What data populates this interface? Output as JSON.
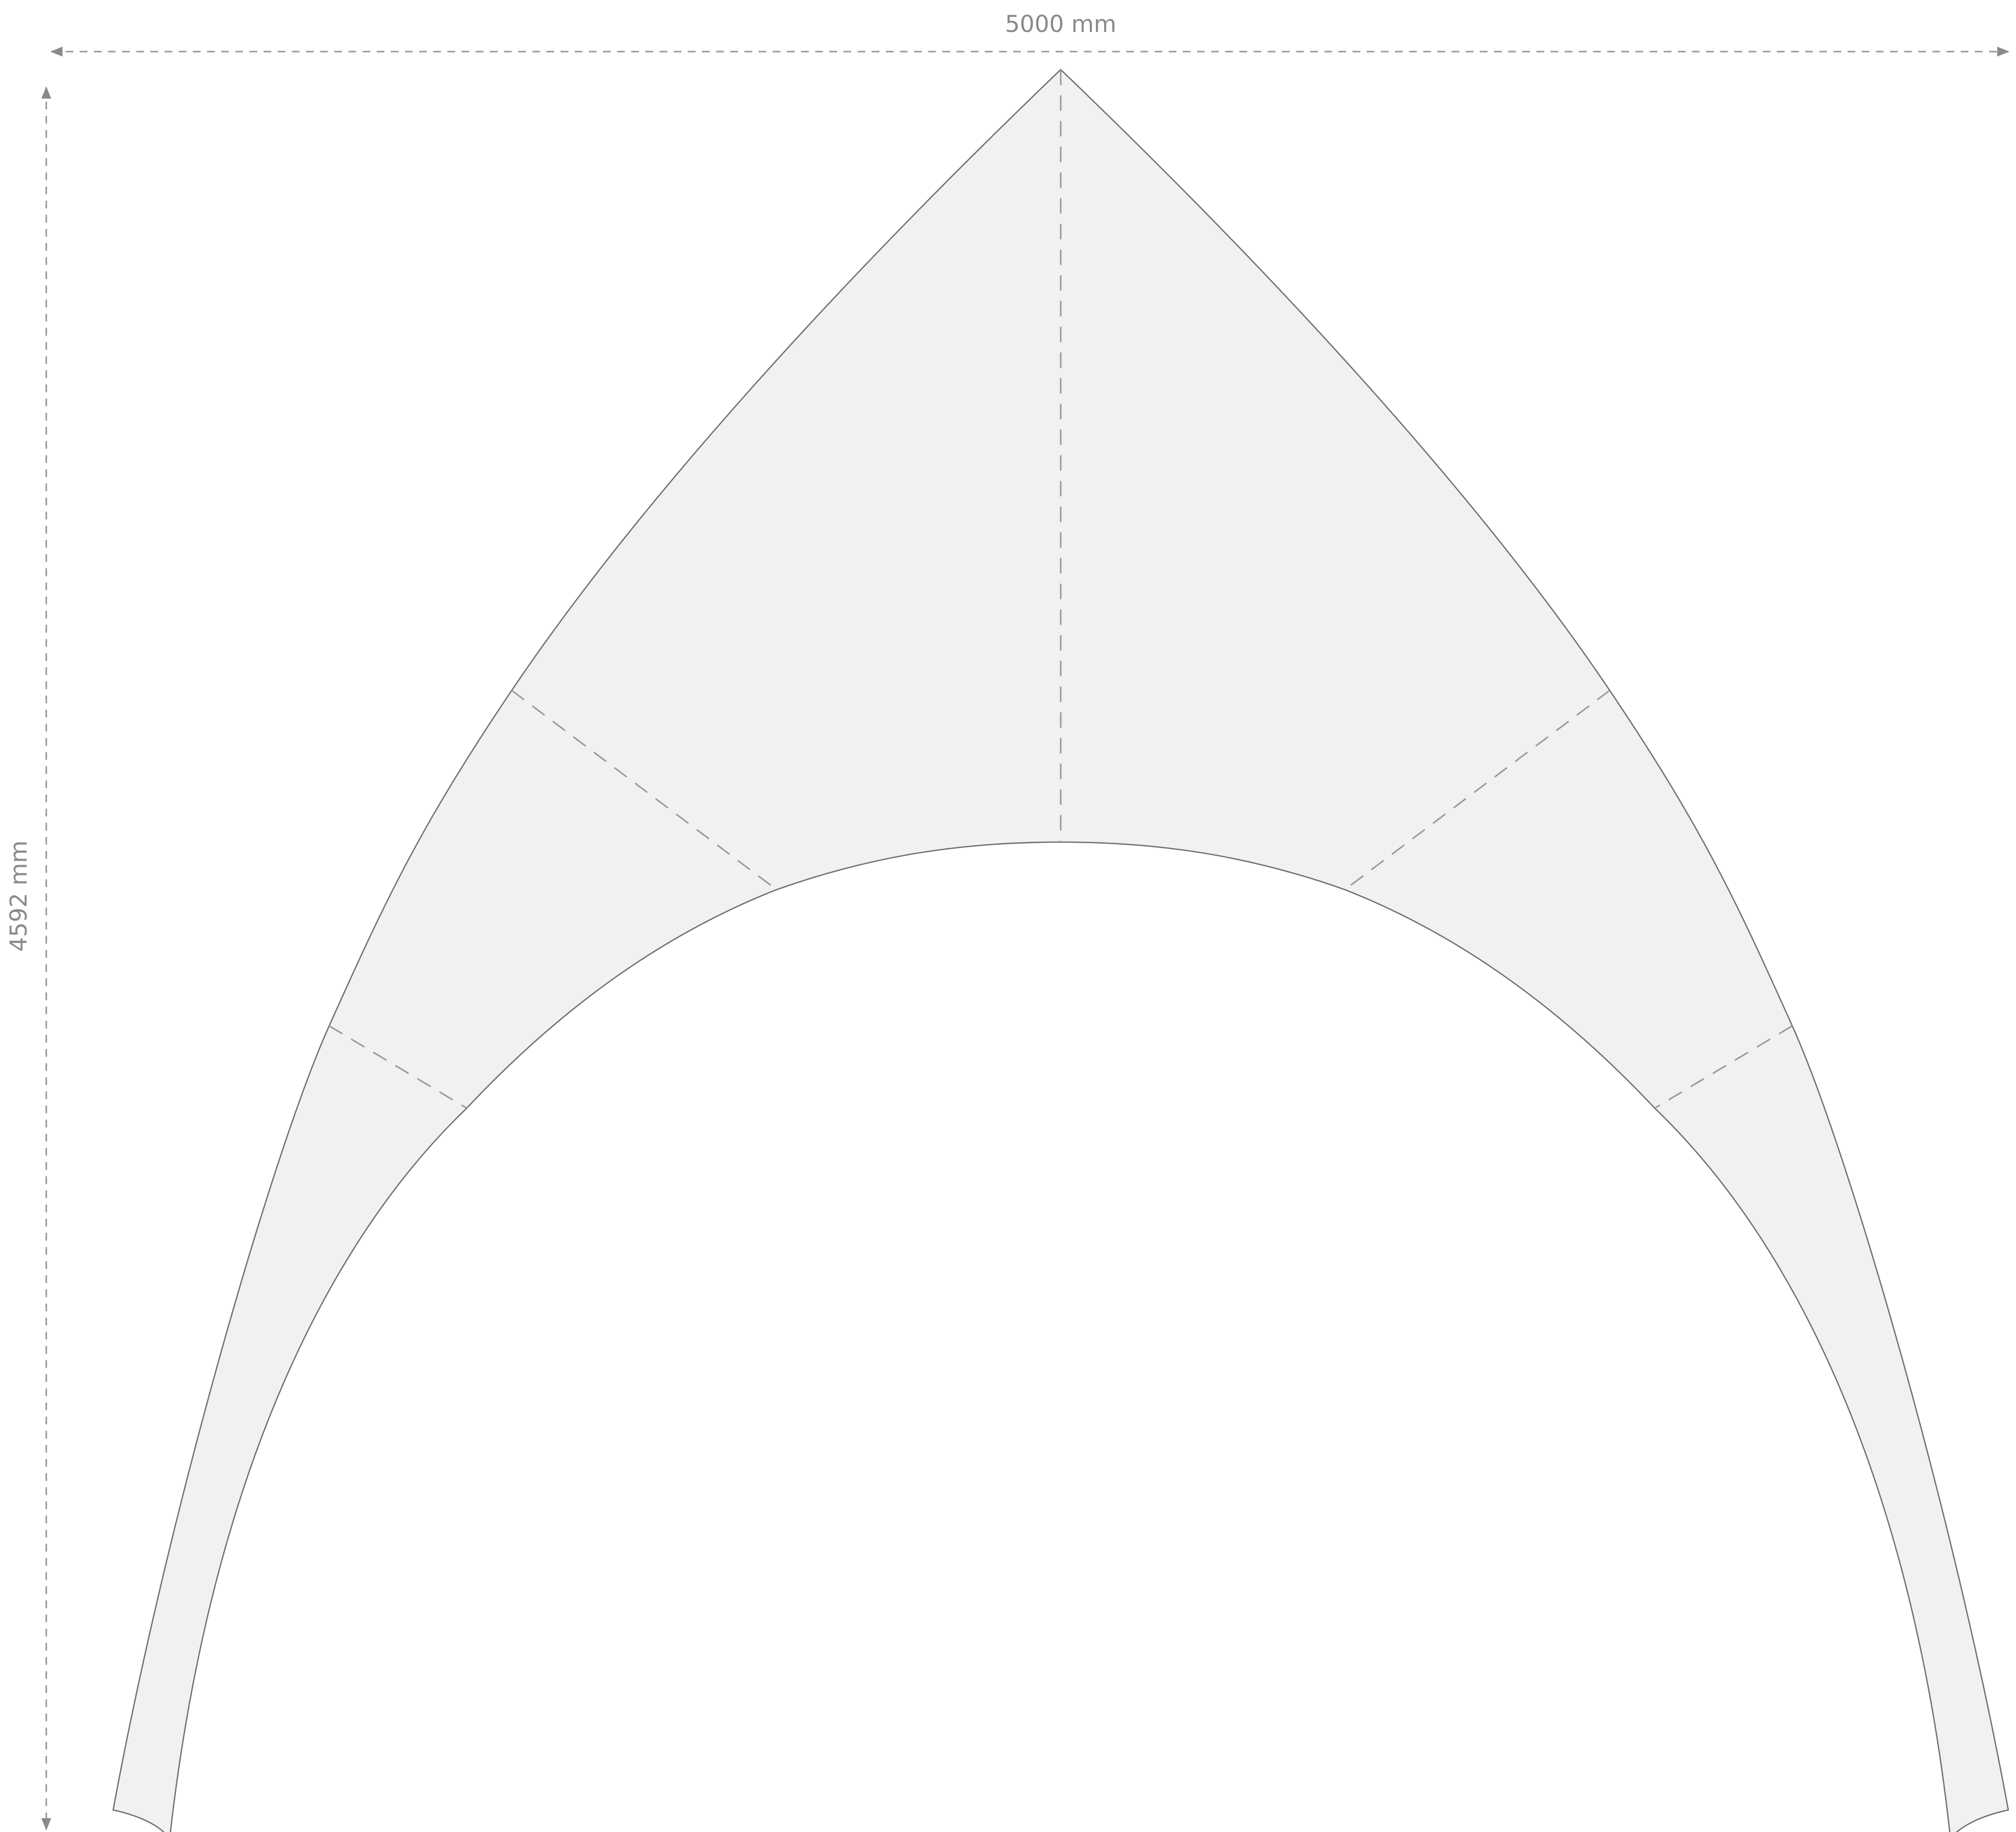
{
  "dimensions": {
    "width": "5000 mm",
    "height": "4592 mm"
  }
}
